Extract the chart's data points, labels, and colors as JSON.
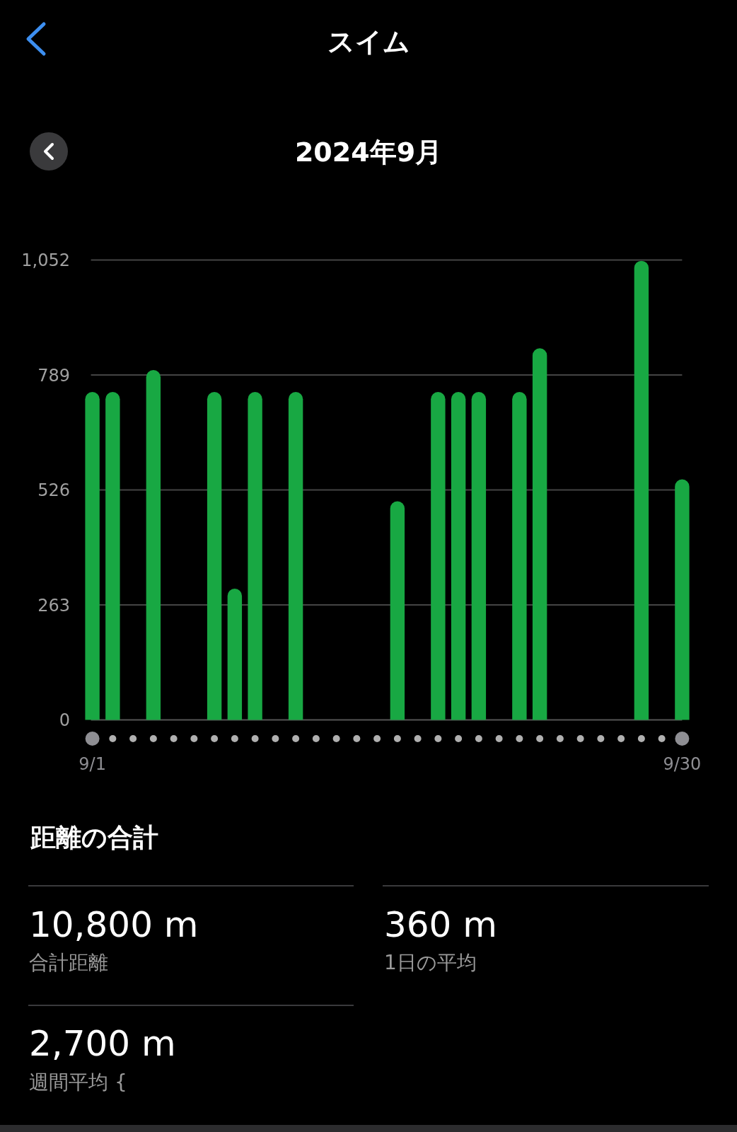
{
  "chart_data": {
    "type": "bar",
    "title": "スイム",
    "subtitle": "2024年9月",
    "categories": [
      "9/1",
      null,
      null,
      null,
      null,
      null,
      null,
      null,
      null,
      null,
      null,
      null,
      null,
      null,
      null,
      null,
      null,
      null,
      null,
      null,
      null,
      null,
      null,
      null,
      null,
      null,
      null,
      null,
      null,
      "9/30"
    ],
    "values": [
      750,
      750,
      null,
      800,
      null,
      null,
      750,
      300,
      750,
      null,
      750,
      null,
      null,
      null,
      null,
      500,
      null,
      750,
      750,
      750,
      null,
      750,
      850,
      null,
      null,
      null,
      null,
      1050,
      null,
      550
    ],
    "color": "#18a843",
    "ylim": [
      0,
      1052
    ],
    "yticks": [
      0,
      263,
      526,
      789,
      {
        "value": 1052,
        "label": "1,052"
      }
    ],
    "grid": "y",
    "annotations": [
      "距離の合計",
      "10,800 m",
      "合計距離",
      "360 m",
      "1日の平均",
      "2,700 m",
      "週間平均 {"
    ]
  }
}
